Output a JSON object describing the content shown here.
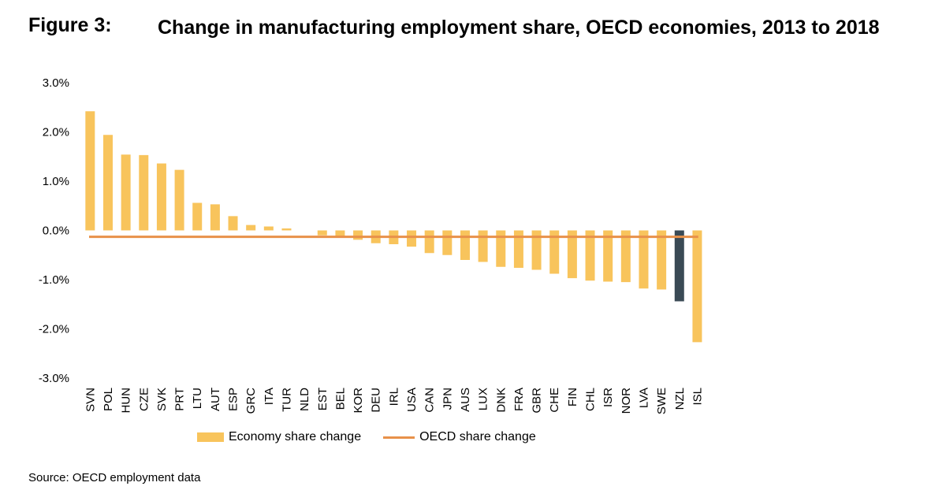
{
  "figure": {
    "label": "Figure 3:",
    "title": "Change in manufacturing employment share, OECD economies, 2013 to 2018"
  },
  "source": "Source: OECD employment data",
  "colors": {
    "bar": "#F8C45C",
    "highlight": "#3A4A55",
    "oecd_line": "#E8914A"
  },
  "chart_data": {
    "type": "bar",
    "title": "",
    "xlabel": "",
    "ylabel": "",
    "ylim": [
      -3.0,
      3.0
    ],
    "yticks": [
      "3.0%",
      "2.0%",
      "1.0%",
      "0.0%",
      "-1.0%",
      "-2.0%",
      "-3.0%"
    ],
    "categories": [
      "SVN",
      "POL",
      "HUN",
      "CZE",
      "SVK",
      "PRT",
      "LTU",
      "AUT",
      "ESP",
      "GRC",
      "ITA",
      "TUR",
      "NLD",
      "EST",
      "BEL",
      "KOR",
      "DEU",
      "IRL",
      "USA",
      "CAN",
      "JPN",
      "AUS",
      "LUX",
      "DNK",
      "FRA",
      "GBR",
      "CHE",
      "FIN",
      "CHL",
      "ISR",
      "NOR",
      "LVA",
      "SWE",
      "NZL",
      "ISL"
    ],
    "series": [
      {
        "name": "Economy share change",
        "values": [
          2.42,
          1.94,
          1.54,
          1.53,
          1.36,
          1.23,
          0.56,
          0.53,
          0.29,
          0.11,
          0.08,
          0.04,
          0.0,
          -0.1,
          -0.13,
          -0.19,
          -0.26,
          -0.28,
          -0.33,
          -0.46,
          -0.5,
          -0.6,
          -0.64,
          -0.74,
          -0.76,
          -0.8,
          -0.88,
          -0.97,
          -1.02,
          -1.04,
          -1.05,
          -1.18,
          -1.2,
          -1.44,
          -2.27
        ],
        "highlight": "NZL"
      },
      {
        "name": "OECD share change",
        "type": "line",
        "value": -0.13
      }
    ],
    "legend": [
      "Economy share change",
      "OECD share change"
    ],
    "legend_position": "bottom",
    "grid": false
  }
}
